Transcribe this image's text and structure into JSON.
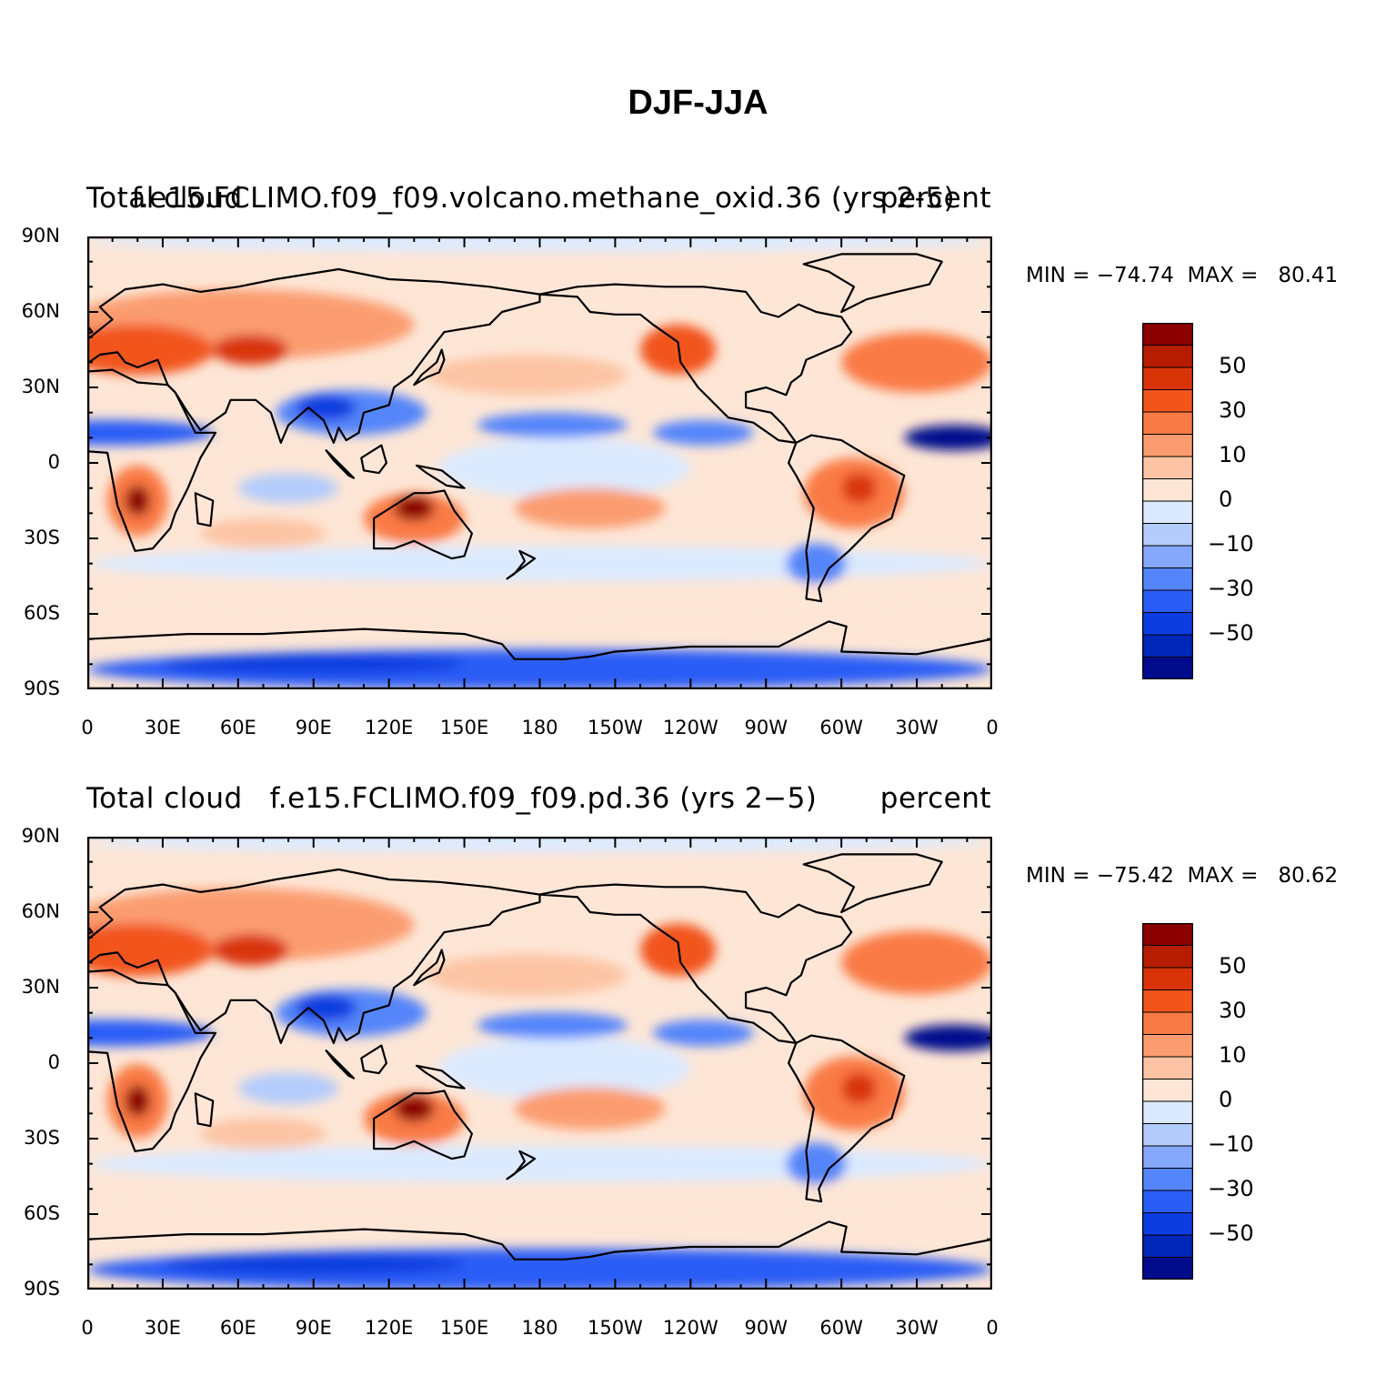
{
  "title": "DJF-JJA",
  "panels": [
    {
      "left_label": "Total cloud",
      "center_label": "f.e15.FCLIMO.f09_f09.volcano.methane_oxid.36 (yrs 2-5)",
      "right_label": "percent",
      "min_label": "MIN = −74.74  MAX =",
      "max_value": "80.41"
    },
    {
      "left_label": "Total cloud",
      "center_label": "f.e15.FCLIMO.f09_f09.pd.36 (yrs 2−5)",
      "right_label": "percent",
      "min_label": "MIN = −75.42  MAX =",
      "max_value": "80.62"
    }
  ],
  "lat_ticks": [
    "90N",
    "60N",
    "30N",
    "0",
    "30S",
    "60S",
    "90S"
  ],
  "lon_ticks": [
    "0",
    "30E",
    "60E",
    "90E",
    "120E",
    "150E",
    "180",
    "150W",
    "120W",
    "90W",
    "60W",
    "30W",
    "0"
  ],
  "colorbar": {
    "labels": [
      "50",
      "30",
      "10",
      "0",
      "−10",
      "−30",
      "−50"
    ],
    "colors_top_to_bottom": [
      "#8b0000",
      "#b51c00",
      "#d93408",
      "#f2551c",
      "#fa7a45",
      "#fb9c70",
      "#fcc4a4",
      "#fde6d6",
      "#dbeaff",
      "#b4ccfb",
      "#85a8fa",
      "#5585fa",
      "#2a5df6",
      "#0d3de0",
      "#0026b8",
      "#000c8c"
    ]
  }
}
